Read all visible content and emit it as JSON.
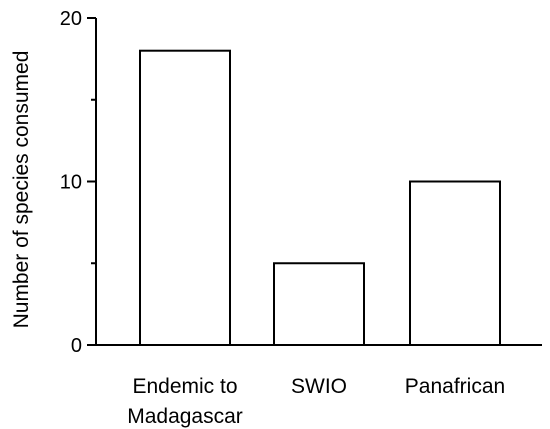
{
  "chart_data": {
    "type": "bar",
    "title": "",
    "xlabel": "",
    "ylabel": "Number of species consumed",
    "ylim": [
      0,
      20
    ],
    "yticks": [
      0,
      10,
      20
    ],
    "grid": false,
    "categories": [
      [
        "Endemic to",
        "Madagascar"
      ],
      [
        "SWIO"
      ],
      [
        "Panafrican"
      ]
    ],
    "values": [
      18,
      5,
      10
    ],
    "colors": {
      "bar_fill": "#ffffff",
      "bar_stroke": "#000000",
      "axis": "#000000"
    }
  }
}
